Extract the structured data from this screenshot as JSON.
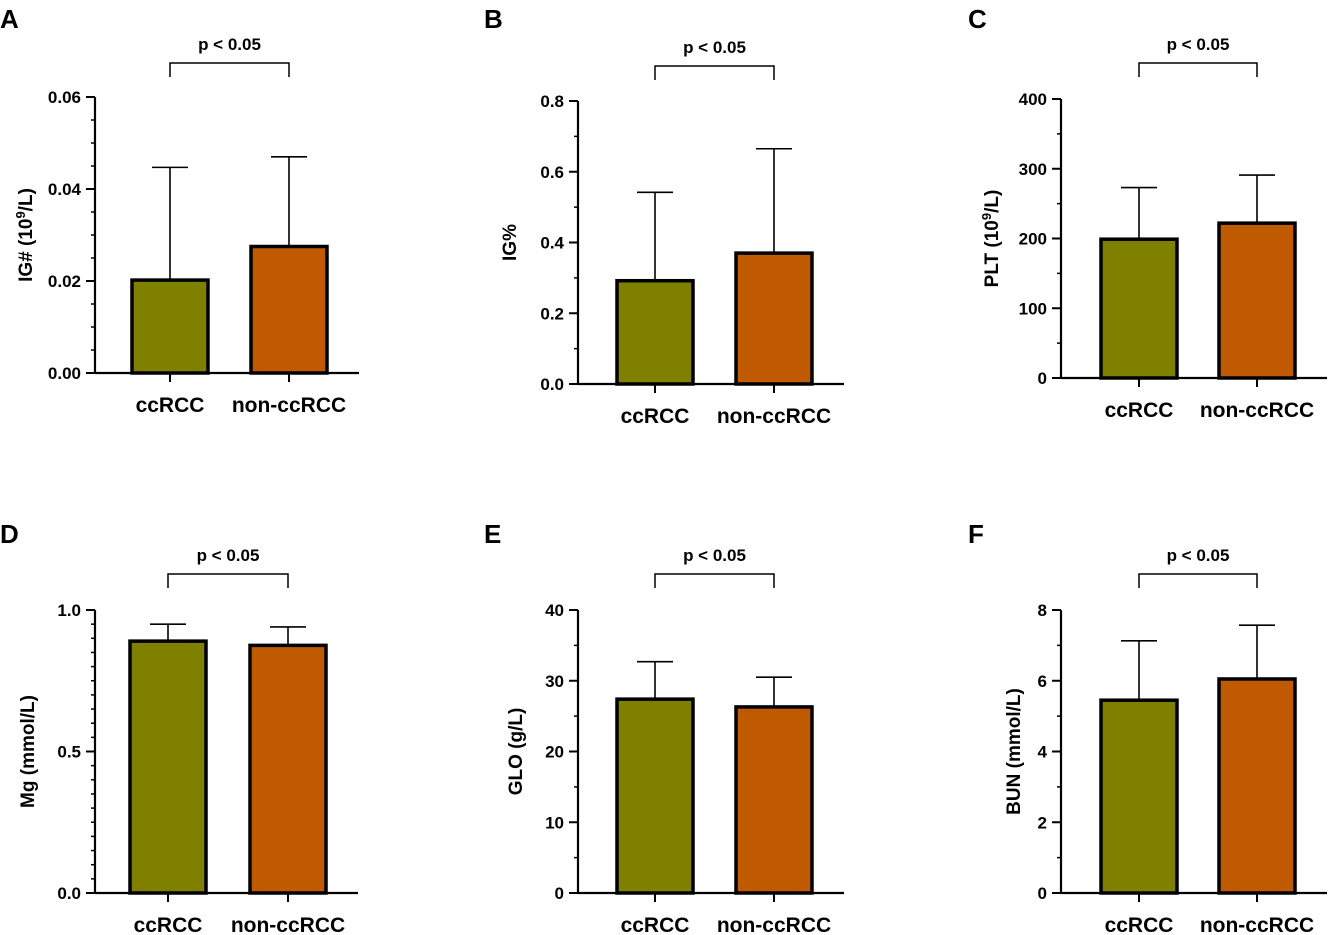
{
  "colors": {
    "ccRCC": "#808000",
    "non_ccRCC": "#C05A00",
    "axis": "#000000"
  },
  "chart_data": [
    {
      "panel": "A",
      "type": "bar",
      "categories": [
        "ccRCC",
        "non-ccRCC"
      ],
      "values": [
        0.0202,
        0.0275
      ],
      "errors": [
        0.0245,
        0.0195
      ],
      "ylabel": "IG# (10",
      "ylabel_sup": "9",
      "ylabel_tail": "/L)",
      "ylim": [
        0,
        0.06
      ],
      "ticks": [
        0,
        0.02,
        0.04,
        0.06
      ],
      "tick_labels": [
        "0.00",
        "0.02",
        "0.04",
        "0.06"
      ],
      "minor_step": 0.005,
      "annotation": "p < 0.05"
    },
    {
      "panel": "B",
      "type": "bar",
      "categories": [
        "ccRCC",
        "non-ccRCC"
      ],
      "values": [
        0.292,
        0.37
      ],
      "errors": [
        0.25,
        0.295
      ],
      "ylabel": "IG%",
      "ylabel_sup": "",
      "ylabel_tail": "",
      "ylim": [
        0,
        0.8
      ],
      "ticks": [
        0,
        0.2,
        0.4,
        0.6,
        0.8
      ],
      "tick_labels": [
        "0.0",
        "0.2",
        "0.4",
        "0.6",
        "0.8"
      ],
      "minor_step": 0.1,
      "annotation": "p < 0.05"
    },
    {
      "panel": "C",
      "type": "bar",
      "categories": [
        "ccRCC",
        "non-ccRCC"
      ],
      "values": [
        199,
        222
      ],
      "errors": [
        74,
        69
      ],
      "ylabel": "PLT (10",
      "ylabel_sup": "9",
      "ylabel_tail": "/L)",
      "ylim": [
        0,
        400
      ],
      "ticks": [
        0,
        100,
        200,
        300,
        400
      ],
      "tick_labels": [
        "0",
        "100",
        "200",
        "300",
        "400"
      ],
      "minor_step": 50,
      "annotation": "p < 0.05"
    },
    {
      "panel": "D",
      "type": "bar",
      "categories": [
        "ccRCC",
        "non-ccRCC"
      ],
      "values": [
        0.89,
        0.875
      ],
      "errors": [
        0.06,
        0.065
      ],
      "ylabel": "Mg (mmol/L)",
      "ylabel_sup": "",
      "ylabel_tail": "",
      "ylim": [
        0,
        1.0
      ],
      "ticks": [
        0,
        0.5,
        1.0
      ],
      "tick_labels": [
        "0.0",
        "0.5",
        "1.0"
      ],
      "minor_step": 0.05,
      "annotation": "p < 0.05"
    },
    {
      "panel": "E",
      "type": "bar",
      "categories": [
        "ccRCC",
        "non-ccRCC"
      ],
      "values": [
        27.4,
        26.3
      ],
      "errors": [
        5.3,
        4.2
      ],
      "ylabel": "GLO (g/L)",
      "ylabel_sup": "",
      "ylabel_tail": "",
      "ylim": [
        0,
        40
      ],
      "ticks": [
        0,
        10,
        20,
        30,
        40
      ],
      "tick_labels": [
        "0",
        "10",
        "20",
        "30",
        "40"
      ],
      "minor_step": 5,
      "annotation": "p < 0.05"
    },
    {
      "panel": "F",
      "type": "bar",
      "categories": [
        "ccRCC",
        "non-ccRCC"
      ],
      "values": [
        5.45,
        6.05
      ],
      "errors": [
        1.68,
        1.52
      ],
      "ylabel": "BUN (mmol/L)",
      "ylabel_sup": "",
      "ylabel_tail": "",
      "ylim": [
        0,
        8
      ],
      "ticks": [
        0,
        2,
        4,
        6,
        8
      ],
      "tick_labels": [
        "0",
        "2",
        "4",
        "6",
        "8"
      ],
      "minor_step": 1,
      "annotation": "p < 0.05"
    }
  ]
}
